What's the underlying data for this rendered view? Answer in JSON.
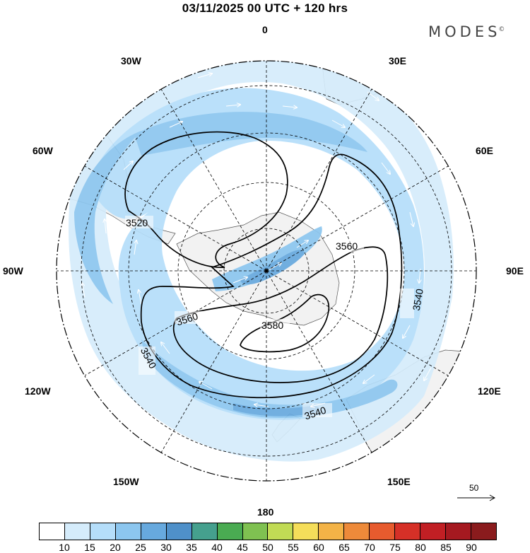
{
  "header": {
    "title": "03/11/2025  00 UTC  + 120 hrs",
    "brand": "MODES",
    "brand_mark": "©"
  },
  "map": {
    "projection": "south-polar-stereographic",
    "longitude_labels": {
      "top": "0",
      "bottom": "180",
      "left": "90W",
      "right": "90E",
      "nw30": "30W",
      "ne30": "30E",
      "nw60": "60W",
      "ne60": "60E",
      "sw120": "120W",
      "se120": "120E",
      "sw150": "150W",
      "se150": "150E"
    },
    "contour_labels": [
      "3520",
      "3560",
      "3560",
      "3580",
      "3540",
      "3540",
      "3540"
    ],
    "contour_interval": 20,
    "reference_vector": {
      "label": "50"
    }
  },
  "colorbar": {
    "labels": [
      "10",
      "15",
      "20",
      "25",
      "30",
      "35",
      "40",
      "45",
      "50",
      "55",
      "60",
      "65",
      "70",
      "75",
      "80",
      "85",
      "90"
    ],
    "colors": [
      "#ffffff",
      "#d5ecfb",
      "#b5defa",
      "#8cc6ef",
      "#67a9de",
      "#4f90c9",
      "#45a08e",
      "#4aab52",
      "#7fc151",
      "#c1db55",
      "#f5de5a",
      "#f3b347",
      "#ed8a3a",
      "#e75b2e",
      "#d63027",
      "#c11f24",
      "#a51920",
      "#8a1b1d"
    ]
  }
}
